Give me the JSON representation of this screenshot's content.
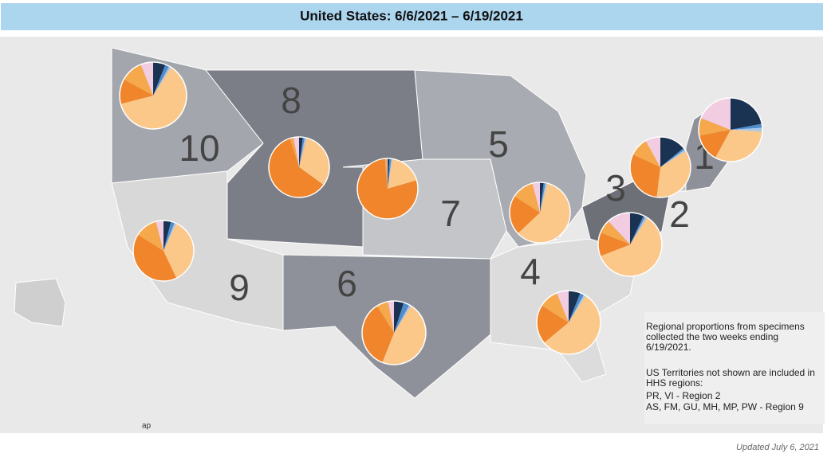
{
  "header": {
    "title": "United States: 6/6/2021 – 6/19/2021"
  },
  "slice_colors": [
    "#1b3352",
    "#4f8ccc",
    "#a8c8e6",
    "#fcc88a",
    "#f0852b",
    "#f5a94c",
    "#f2cde2"
  ],
  "regions": [
    {
      "label": "10",
      "pie": {
        "values": [
          6,
          2,
          1,
          62,
          12,
          11,
          6
        ]
      }
    },
    {
      "label": "8",
      "pie": {
        "values": [
          2,
          1,
          1,
          31,
          60,
          2,
          3
        ]
      }
    },
    {
      "label": "7",
      "pie": {
        "values": [
          1,
          1,
          0.5,
          18,
          78,
          1,
          0.5
        ]
      }
    },
    {
      "label": "9",
      "pie": {
        "values": [
          4,
          2,
          1,
          36,
          41,
          12,
          4
        ]
      }
    },
    {
      "label": "6",
      "pie": {
        "values": [
          5,
          3,
          1,
          47,
          35,
          6,
          3
        ]
      }
    },
    {
      "label": "5",
      "pie": {
        "values": [
          2,
          1,
          1,
          59,
          21,
          12,
          4
        ]
      }
    },
    {
      "label": "4",
      "pie": {
        "values": [
          6,
          2,
          1,
          55,
          20,
          10,
          6
        ]
      }
    },
    {
      "label": "3",
      "pie": {
        "values": [
          14,
          1,
          1,
          36,
          30,
          10,
          8
        ]
      }
    },
    {
      "label": "2",
      "pie": {
        "values": [
          7,
          1,
          1,
          60,
          12,
          7,
          12
        ]
      }
    },
    {
      "label": "1",
      "pie": {
        "values": [
          22,
          2,
          2,
          32,
          14,
          9,
          19
        ]
      }
    }
  ],
  "note": {
    "lines": [
      "Regional proportions from specimens",
      "collected the two weeks ending",
      "6/19/2021.",
      "US Territories not shown are included in",
      "HHS regions:",
      "PR, VI - Region 2",
      "AS, FM, GU, MH, MP, PW - Region 9"
    ]
  },
  "map_credit": "ap",
  "footer": "Updated July 6, 2021"
}
